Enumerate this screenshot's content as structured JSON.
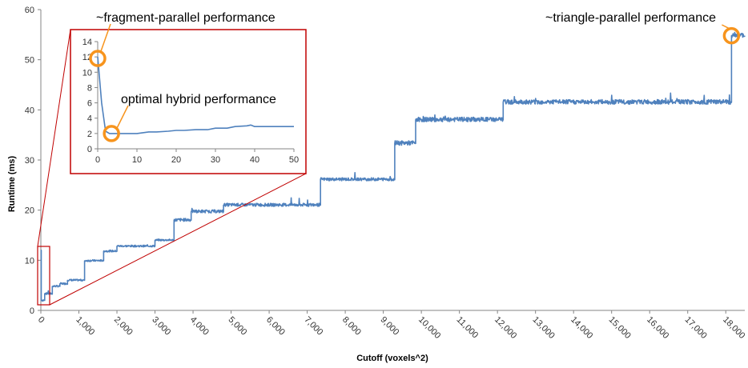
{
  "chart_data": {
    "type": "line",
    "title": "",
    "xlabel": "Cutoff (voxels^2)",
    "ylabel": "Runtime (ms)",
    "xlim": [
      0,
      18500
    ],
    "ylim": [
      0,
      60
    ],
    "x_ticks": [
      0,
      1000,
      2000,
      3000,
      4000,
      5000,
      6000,
      7000,
      8000,
      9000,
      10000,
      11000,
      12000,
      13000,
      14000,
      15000,
      16000,
      17000,
      18000
    ],
    "x_tick_labels": [
      "0",
      "1,000",
      "2,000",
      "3,000",
      "4,000",
      "5,000",
      "6,000",
      "7,000",
      "8,000",
      "9,000",
      "10,000",
      "11,000",
      "12,000",
      "13,000",
      "14,000",
      "15,000",
      "16,000",
      "17,000",
      "18,000"
    ],
    "y_ticks": [
      0,
      10,
      20,
      30,
      40,
      50,
      60
    ],
    "grid": false,
    "series_color": "#4f81bd",
    "highlight_color": "#f7941d",
    "zoom_box_color": "#c00000",
    "series": [
      {
        "steps": [
          [
            0,
            12
          ],
          [
            10,
            2
          ],
          [
            100,
            3.3
          ],
          [
            300,
            4.8
          ],
          [
            500,
            5.3
          ],
          [
            700,
            6.0
          ],
          [
            1150,
            9.9
          ],
          [
            1650,
            11.8
          ],
          [
            2000,
            12.8
          ],
          [
            3000,
            14.0
          ],
          [
            3500,
            18.0
          ],
          [
            3950,
            19.7
          ],
          [
            4800,
            21.0
          ],
          [
            7350,
            26.1
          ],
          [
            9300,
            33.3
          ],
          [
            9850,
            38.0
          ],
          [
            12150,
            41.5
          ],
          [
            18150,
            54.8
          ],
          [
            18500,
            54.8
          ]
        ]
      }
    ],
    "annotations": [
      {
        "text": "~triangle-parallel performance",
        "x": 18150,
        "y": 54.8
      }
    ],
    "inset": {
      "xlim": [
        0,
        50
      ],
      "ylim": [
        0,
        14
      ],
      "x_ticks": [
        0,
        10,
        20,
        30,
        40,
        50
      ],
      "y_ticks": [
        0,
        2,
        4,
        6,
        8,
        10,
        12,
        14
      ],
      "x": [
        0,
        1,
        2,
        3,
        4,
        5,
        8,
        10,
        13,
        15,
        18,
        20,
        22,
        25,
        28,
        30,
        33,
        35,
        38,
        39,
        40,
        42,
        45,
        48,
        50
      ],
      "y": [
        12,
        6,
        2.3,
        2.0,
        2.0,
        2.0,
        2.0,
        2.0,
        2.2,
        2.2,
        2.3,
        2.4,
        2.4,
        2.5,
        2.5,
        2.7,
        2.7,
        2.9,
        3.0,
        3.1,
        2.9,
        2.9,
        2.9,
        2.9,
        2.9
      ],
      "annotations": [
        {
          "text": "~fragment-parallel performance",
          "x": 0,
          "y": 11.8
        },
        {
          "text": "optimal hybrid performance",
          "x": 3.5,
          "y": 2.0
        }
      ]
    }
  }
}
